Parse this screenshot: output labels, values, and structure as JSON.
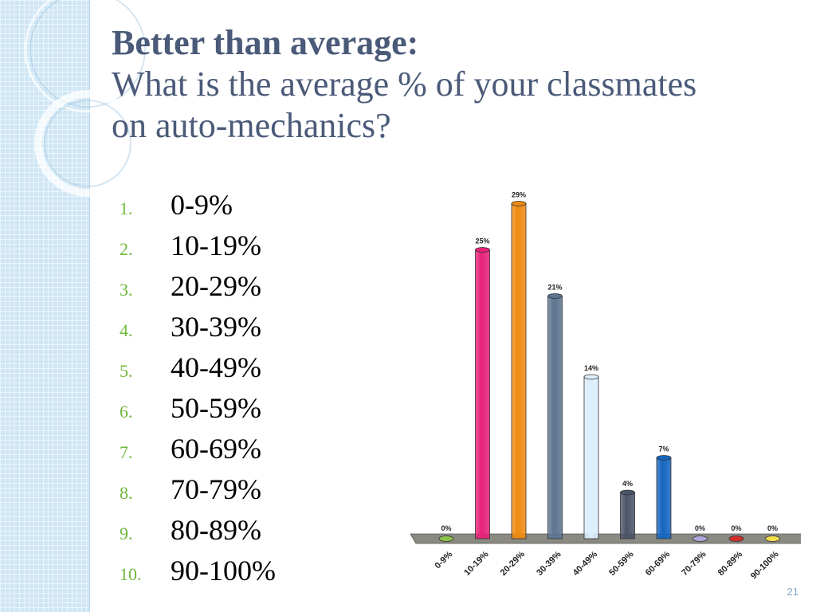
{
  "title": {
    "line1": "Better than average:",
    "line2": "What is the average % of your classmates on auto-mechanics?"
  },
  "options": [
    {
      "num": "1.",
      "label": "0-9%"
    },
    {
      "num": "2.",
      "label": "10-19%"
    },
    {
      "num": "3.",
      "label": "20-29%"
    },
    {
      "num": "4.",
      "label": "30-39%"
    },
    {
      "num": "5.",
      "label": "40-49%"
    },
    {
      "num": "6.",
      "label": "50-59%"
    },
    {
      "num": "7.",
      "label": "60-69%"
    },
    {
      "num": "8.",
      "label": "70-79%"
    },
    {
      "num": "9.",
      "label": "80-89%"
    },
    {
      "num": "10.",
      "label": "90-100%"
    }
  ],
  "slide_number": "21",
  "colors": {
    "title": "#4a5a78",
    "list_number": "#6fb83a",
    "floor": "#8a8a82"
  },
  "chart_data": {
    "type": "bar",
    "title": "",
    "xlabel": "",
    "ylabel": "",
    "ylim": [
      0,
      30
    ],
    "categories": [
      "0-9%",
      "10-19%",
      "20-29%",
      "30-39%",
      "40-49%",
      "50-59%",
      "60-69%",
      "70-79%",
      "80-89%",
      "90-100%"
    ],
    "values": [
      0,
      25,
      29,
      21,
      14,
      4,
      7,
      0,
      0,
      0
    ],
    "data_labels": [
      "0%",
      "25%",
      "29%",
      "21%",
      "14%",
      "4%",
      "7%",
      "0%",
      "0%",
      "0%"
    ],
    "bar_colors": [
      "#8bc34a",
      "#e8217a",
      "#f08a10",
      "#5d7590",
      "#dceefc",
      "#4a5568",
      "#1565c0",
      "#b0a8d8",
      "#d32f2f",
      "#f4e04d"
    ]
  }
}
